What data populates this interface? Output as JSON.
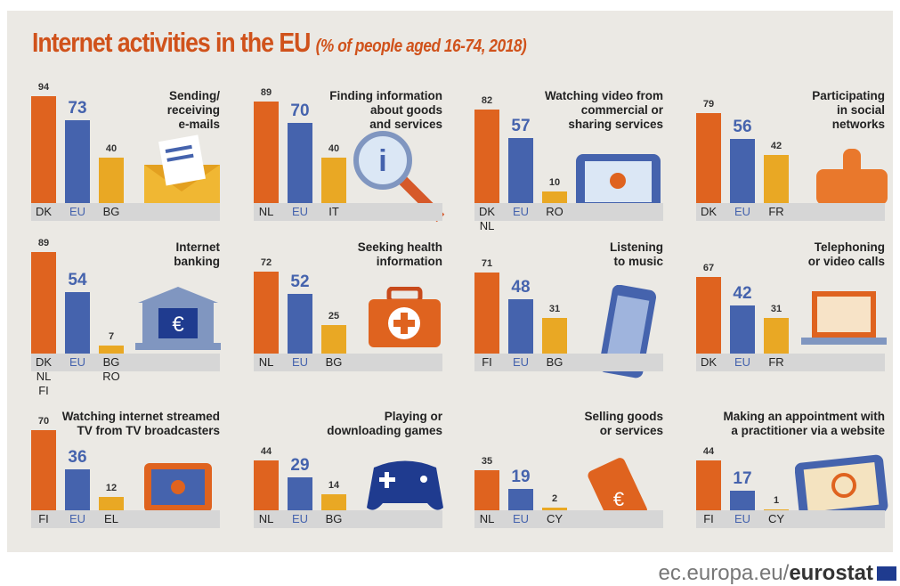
{
  "title": "Internet activities in the EU",
  "subtitle": "(% of people aged 16-74, 2018)",
  "footer": {
    "site": "ec.europa.eu/",
    "brand": "eurostat"
  },
  "chart_data": [
    {
      "type": "bar",
      "title": "Sending/\nreceiving\ne-mails",
      "categories": [
        "DK",
        "EU",
        "BG"
      ],
      "values": [
        94,
        73,
        40
      ],
      "colors": [
        "#df631f",
        "#4563ad",
        "#e9a824"
      ]
    },
    {
      "type": "bar",
      "title": "Finding information\nabout goods\nand services",
      "categories": [
        "NL",
        "EU",
        "IT"
      ],
      "values": [
        89,
        70,
        40
      ],
      "colors": [
        "#df631f",
        "#4563ad",
        "#e9a824"
      ]
    },
    {
      "type": "bar",
      "title": "Watching video from\ncommercial or\nsharing services",
      "categories": [
        "DK\nNL",
        "EU",
        "RO"
      ],
      "values": [
        82,
        57,
        10
      ],
      "colors": [
        "#df631f",
        "#4563ad",
        "#e9a824"
      ]
    },
    {
      "type": "bar",
      "title": "Participating\nin social\nnetworks",
      "categories": [
        "DK",
        "EU",
        "FR"
      ],
      "values": [
        79,
        56,
        42
      ],
      "colors": [
        "#df631f",
        "#4563ad",
        "#e9a824"
      ]
    },
    {
      "type": "bar",
      "title": "Internet\nbanking",
      "categories": [
        "DK\nNL\nFI",
        "EU",
        "BG\nRO"
      ],
      "values": [
        89,
        54,
        7
      ],
      "colors": [
        "#df631f",
        "#4563ad",
        "#e9a824"
      ]
    },
    {
      "type": "bar",
      "title": "Seeking health\ninformation",
      "categories": [
        "NL",
        "EU",
        "BG"
      ],
      "values": [
        72,
        52,
        25
      ],
      "colors": [
        "#df631f",
        "#4563ad",
        "#e9a824"
      ]
    },
    {
      "type": "bar",
      "title": "Listening\nto music",
      "categories": [
        "FI",
        "EU",
        "BG"
      ],
      "values": [
        71,
        48,
        31
      ],
      "colors": [
        "#df631f",
        "#4563ad",
        "#e9a824"
      ]
    },
    {
      "type": "bar",
      "title": "Telephoning\nor video calls",
      "categories": [
        "DK",
        "EU",
        "FR"
      ],
      "values": [
        67,
        42,
        31
      ],
      "colors": [
        "#df631f",
        "#4563ad",
        "#e9a824"
      ]
    },
    {
      "type": "bar",
      "title": "Watching internet streamed\nTV from TV broadcasters",
      "categories": [
        "FI",
        "EU",
        "EL"
      ],
      "values": [
        70,
        36,
        12
      ],
      "colors": [
        "#df631f",
        "#4563ad",
        "#e9a824"
      ]
    },
    {
      "type": "bar",
      "title": "Playing or\ndownloading games",
      "categories": [
        "NL",
        "EU",
        "BG"
      ],
      "values": [
        44,
        29,
        14
      ],
      "colors": [
        "#df631f",
        "#4563ad",
        "#e9a824"
      ]
    },
    {
      "type": "bar",
      "title": "Selling goods\nor services",
      "categories": [
        "NL",
        "EU",
        "CY"
      ],
      "values": [
        35,
        19,
        2
      ],
      "colors": [
        "#df631f",
        "#4563ad",
        "#e9a824"
      ]
    },
    {
      "type": "bar",
      "title": "Making an appointment with\na practitioner via a website",
      "categories": [
        "FI",
        "EU",
        "CY"
      ],
      "values": [
        44,
        17,
        1
      ],
      "colors": [
        "#df631f",
        "#4563ad",
        "#e9a824"
      ]
    }
  ]
}
